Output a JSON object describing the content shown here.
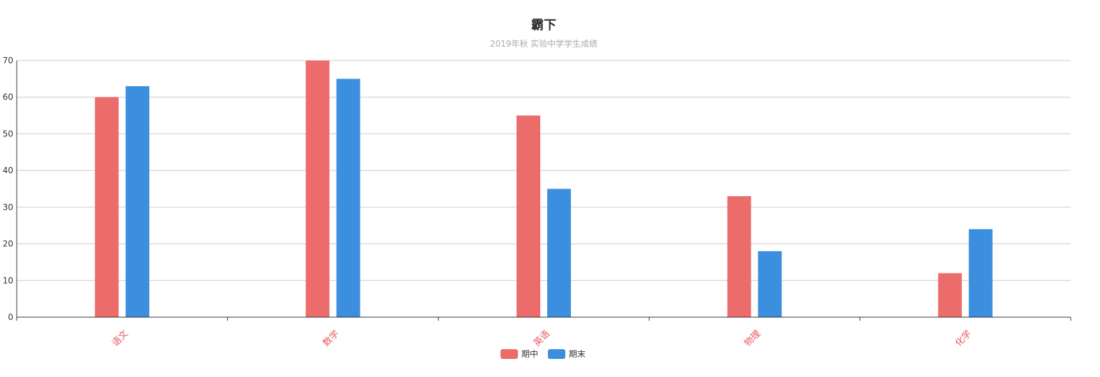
{
  "chart_data": {
    "type": "bar",
    "title": "霸下",
    "subtitle": "2019年秋  实验中学学生成绩",
    "categories": [
      "语文",
      "数学",
      "英语",
      "物理",
      "化学"
    ],
    "series": [
      {
        "name": "期中",
        "values": [
          60,
          70,
          55,
          33,
          12
        ],
        "color": "#ec6b6b"
      },
      {
        "name": "期末",
        "values": [
          63,
          65,
          35,
          18,
          24
        ],
        "color": "#3b8fde"
      }
    ],
    "ylim": [
      0,
      70
    ],
    "yticks": [
      0,
      10,
      20,
      30,
      40,
      50,
      60,
      70
    ],
    "grid": true,
    "legend": "bottom-center",
    "xtick_color": "#e8585e",
    "xtick_rotation": -45
  }
}
